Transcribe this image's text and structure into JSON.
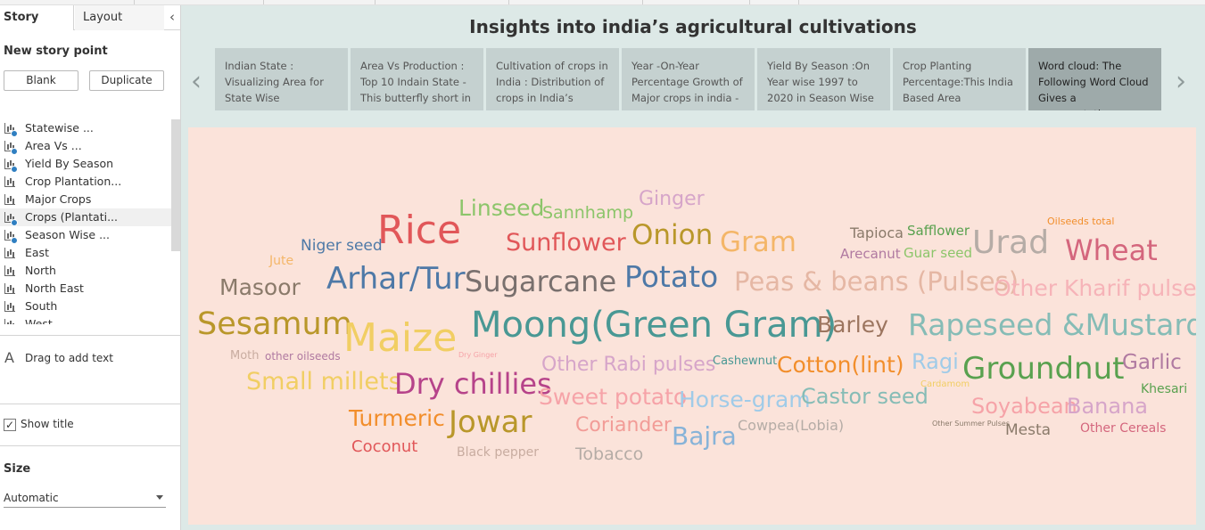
{
  "sidebar": {
    "tabs": {
      "story": "Story",
      "layout": "Layout"
    },
    "new_story_point": "New story point",
    "buttons": {
      "blank": "Blank",
      "duplicate": "Duplicate"
    },
    "sheets": [
      {
        "label": "Statewise ...",
        "used": true
      },
      {
        "label": " Area Vs ...",
        "used": true
      },
      {
        "label": "Yield By Season",
        "used": true
      },
      {
        "label": "Crop Plantation...",
        "used": false
      },
      {
        "label": "Major Crops",
        "used": false
      },
      {
        "label": "Crops (Plantati...",
        "used": true
      },
      {
        "label": "Season Wise ...",
        "used": true
      },
      {
        "label": "East",
        "used": false
      },
      {
        "label": "North",
        "used": false
      },
      {
        "label": "North East",
        "used": false
      },
      {
        "label": "South",
        "used": false
      },
      {
        "label": "West",
        "used": false
      }
    ],
    "drag_text": "Drag to add text",
    "show_title": "Show title",
    "show_title_checked": true,
    "size_label": "Size",
    "size_value": "Automatic"
  },
  "story": {
    "title": "Insights into india’s agricultural cultivations",
    "points": [
      "Indian State : Visualizing Area for State Wise",
      "Area Vs Production : Top 10 Indain State - This butterfly short in",
      "Cultivation of crops in India : Distribution of crops in India’s",
      "Year -On-Year Percentage Growth of Major crops in india -",
      "Yield By Season :On Year wise 1997 to 2020 in Season Wise",
      "Crop Planting Percentage:This India Based Area",
      "Word cloud: The Following Word Cloud Gives a representation"
    ],
    "active_point": 6
  },
  "wordcloud": {
    "words": [
      {
        "text": "Linseed",
        "color": "#8cc56a"
      },
      {
        "text": "Sannhamp",
        "color": "#8cc56a"
      },
      {
        "text": "Ginger",
        "color": "#d6a5c9"
      },
      {
        "text": "Rice",
        "color": "#e15759"
      },
      {
        "text": "Sunflower",
        "color": "#e15759"
      },
      {
        "text": "Onion",
        "color": "#b9972a"
      },
      {
        "text": "Gram",
        "color": "#f4b668"
      },
      {
        "text": "Tapioca",
        "color": "#8a7a6a"
      },
      {
        "text": "Safflower",
        "color": "#59a14f"
      },
      {
        "text": "Urad",
        "color": "#b5aca6"
      },
      {
        "text": "Wheat",
        "color": "#d4667d"
      },
      {
        "text": "Oilseeds total",
        "color": "#f28e2b"
      },
      {
        "text": "Niger seed",
        "color": "#4e79a7"
      },
      {
        "text": "Arecanut",
        "color": "#b07aa1"
      },
      {
        "text": "Guar seed",
        "color": "#8cc56a"
      },
      {
        "text": "Jute",
        "color": "#f4b668"
      },
      {
        "text": "Masoor",
        "color": "#8a7a6a"
      },
      {
        "text": "Arhar/Tur",
        "color": "#4e79a7"
      },
      {
        "text": "Sugarcane",
        "color": "#79706e"
      },
      {
        "text": "Potato",
        "color": "#4e79a7"
      },
      {
        "text": "Peas & beans (Pulses)",
        "color": "#e5b7a4"
      },
      {
        "text": "Other Kharif pulses",
        "color": "#f6b3b8"
      },
      {
        "text": "Sesamum",
        "color": "#b9972a"
      },
      {
        "text": "Maize",
        "color": "#f1ce63"
      },
      {
        "text": "Moong(Green Gram)",
        "color": "#499894"
      },
      {
        "text": "Barley",
        "color": "#9c755f"
      },
      {
        "text": "Rapeseed &Mustard",
        "color": "#86bcb6"
      },
      {
        "text": "Moth",
        "color": "#c8aca0"
      },
      {
        "text": "other oilseeds",
        "color": "#b07aa1"
      },
      {
        "text": "Dry Ginger",
        "color": "#f6a3a8"
      },
      {
        "text": "Other Rabi pulses",
        "color": "#d6a5c9"
      },
      {
        "text": "Cashewnut",
        "color": "#499894"
      },
      {
        "text": "Cotton(lint)",
        "color": "#f28e2b"
      },
      {
        "text": "Ragi",
        "color": "#a0cbe8"
      },
      {
        "text": "Groundnut",
        "color": "#59a14f"
      },
      {
        "text": "Garlic",
        "color": "#b07aa1"
      },
      {
        "text": "Small millets",
        "color": "#f1ce63"
      },
      {
        "text": "Dry chillies",
        "color": "#b6438a"
      },
      {
        "text": "Sweet potato",
        "color": "#f6a3a8"
      },
      {
        "text": "Horse-gram",
        "color": "#a0cbe8"
      },
      {
        "text": "Castor seed",
        "color": "#86bcb6"
      },
      {
        "text": "Cardamom",
        "color": "#f1ce63"
      },
      {
        "text": "Khesari",
        "color": "#59a14f"
      },
      {
        "text": "Soyabean",
        "color": "#f6a3a8"
      },
      {
        "text": "Banana",
        "color": "#d6a5c9"
      },
      {
        "text": "Turmeric",
        "color": "#f28e2b"
      },
      {
        "text": "Jowar",
        "color": "#b9972a"
      },
      {
        "text": "Coriander",
        "color": "#f29c97"
      },
      {
        "text": "Bajra",
        "color": "#87b3d8"
      },
      {
        "text": "Cowpea(Lobia)",
        "color": "#b5aca6"
      },
      {
        "text": "Other Summer Pulses",
        "color": "#8a7a6a"
      },
      {
        "text": "Mesta",
        "color": "#8a7a6a"
      },
      {
        "text": "Other Cereals",
        "color": "#d4667d"
      },
      {
        "text": "Coconut",
        "color": "#e15759"
      },
      {
        "text": "Black pepper",
        "color": "#c8aca0"
      },
      {
        "text": "Tobacco",
        "color": "#b5aca6"
      }
    ]
  }
}
